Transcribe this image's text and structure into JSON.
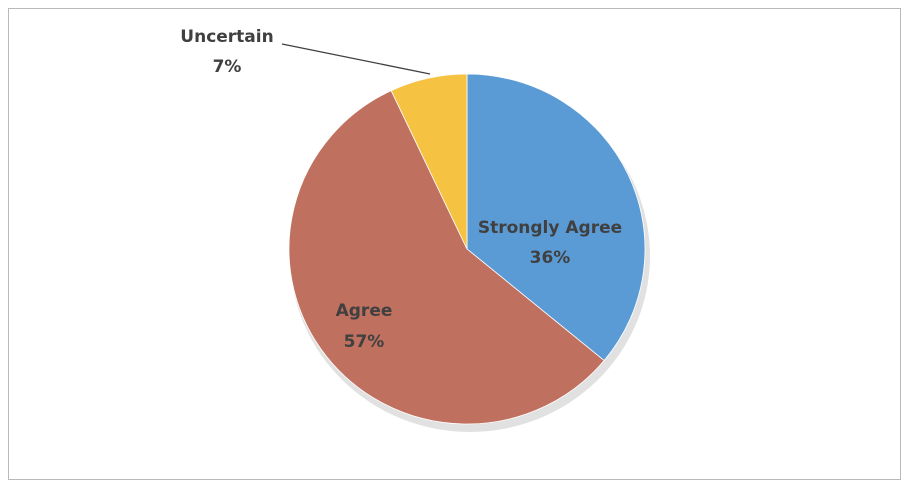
{
  "chart_data": {
    "type": "pie",
    "title": "",
    "slices": [
      {
        "label": "Strongly Agree",
        "value": 36,
        "value_label": "36%",
        "color": "#5b9bd5"
      },
      {
        "label": "Agree",
        "value": 57,
        "value_label": "57%",
        "color": "#c0705e"
      },
      {
        "label": "Uncertain",
        "value": 7,
        "value_label": "7%",
        "color": "#f5c242"
      }
    ],
    "start_angle_deg": 0,
    "direction": "clockwise",
    "legend": "none",
    "data_labels": "category-and-percent"
  }
}
